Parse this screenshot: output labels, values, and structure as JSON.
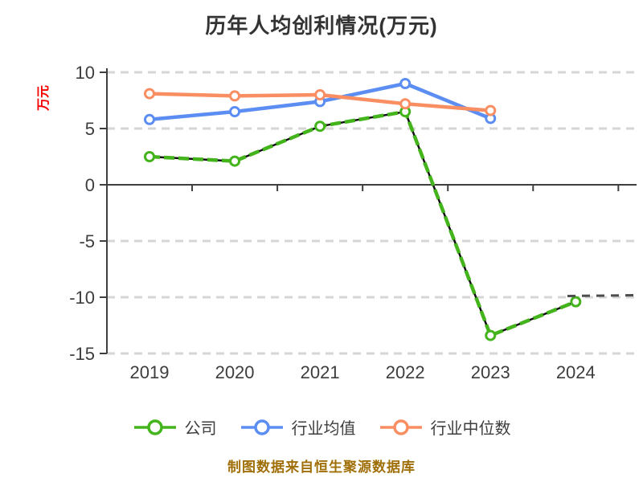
{
  "title": "历年人均创利情况(万元)",
  "y_axis_label": "万元",
  "footer": "制图数据来自恒生聚源数据库",
  "colors": {
    "background": "#ffffff",
    "title": "#333333",
    "y_axis_label": "#f40000",
    "footer": "#a06f08",
    "grid": "#d6d6d6",
    "axis": "#3f3f3f",
    "tick_label": "#3d3d3d",
    "company": "#44b41c",
    "industry_average": "#5b8df2",
    "industry_median": "#f98e62",
    "marker_fill": "#ffffff",
    "dash_underlay": "#111111"
  },
  "chart_data": {
    "type": "line",
    "categories": [
      "2019",
      "2020",
      "2021",
      "2022",
      "2023",
      "2024"
    ],
    "series": [
      {
        "name": "公司",
        "key": "company",
        "color": "#44b41c",
        "line_style": "dashed-over-black",
        "values": [
          2.5,
          2.1,
          5.2,
          6.5,
          -13.4,
          -10.4
        ]
      },
      {
        "name": "行业均值",
        "key": "industry-average",
        "color": "#5b8df2",
        "line_style": "solid",
        "values": [
          5.8,
          6.5,
          7.4,
          9.0,
          5.9,
          null
        ]
      },
      {
        "name": "行业中位数",
        "key": "industry-median",
        "color": "#f98e62",
        "line_style": "solid",
        "values": [
          8.1,
          7.9,
          8.0,
          7.2,
          6.6,
          null
        ]
      }
    ],
    "yticks": [
      10,
      5,
      0,
      -5,
      -10,
      -15
    ],
    "ylim": [
      -15,
      10
    ],
    "xlabel": "",
    "ylabel": "万元",
    "grid": "horizontal-dashed",
    "zero_axis_line": true,
    "legend_position": "bottom",
    "title": "历年人均创利情况(万元)",
    "annotation": "dark dashed trail continues right of last company point near -10"
  }
}
